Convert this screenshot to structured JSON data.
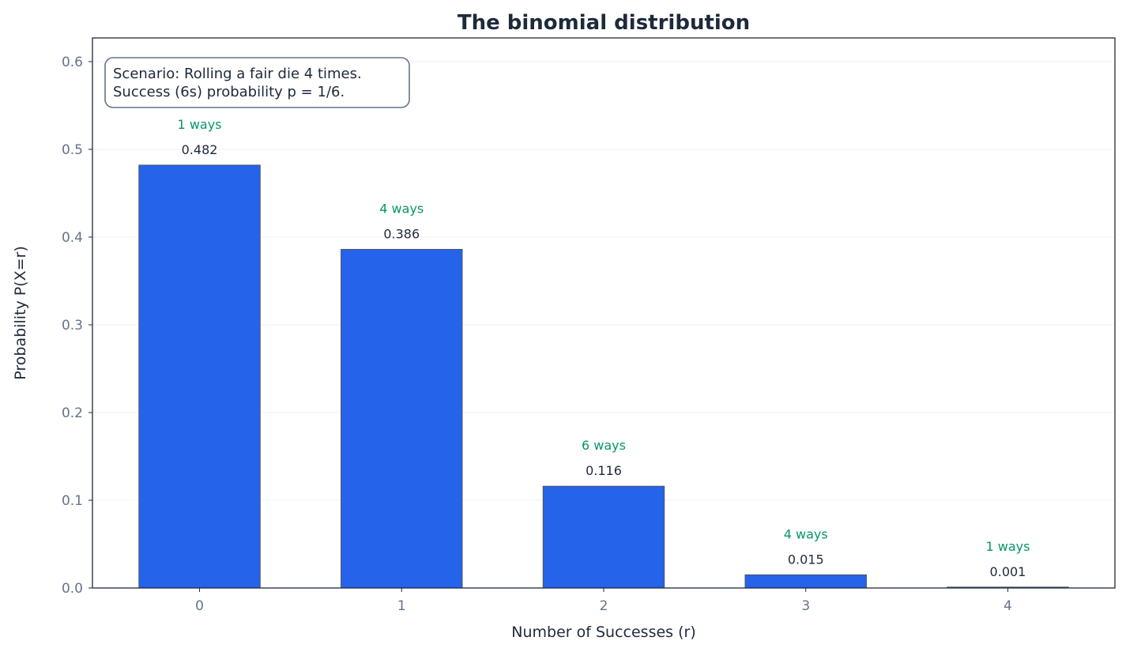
{
  "chart_data": {
    "type": "bar",
    "title": "The binomial distribution",
    "xlabel": "Number of Successes (r)",
    "ylabel": "Probability P(X=r)",
    "categories": [
      "0",
      "1",
      "2",
      "3",
      "4"
    ],
    "values": [
      0.482,
      0.386,
      0.116,
      0.015,
      0.001
    ],
    "value_labels": [
      "0.482",
      "0.386",
      "0.116",
      "0.015",
      "0.001"
    ],
    "ways_labels": [
      "1 ways",
      "4 ways",
      "6 ways",
      "4 ways",
      "1 ways"
    ],
    "ylim": [
      0,
      0.627
    ],
    "xlim": [
      -0.53,
      4.53
    ],
    "yticks": [
      0.0,
      0.1,
      0.2,
      0.3,
      0.4,
      0.5,
      0.6
    ],
    "ytick_labels": [
      "0.0",
      "0.1",
      "0.2",
      "0.3",
      "0.4",
      "0.5",
      "0.6"
    ],
    "grid": "horizontal, faint",
    "annotation": [
      "Scenario: Rolling a fair die 4 times.",
      "Success (6s) probability p = 1/6."
    ],
    "colors": {
      "bar": "#2563eb",
      "bar_edge": "#4b5563",
      "ways_text": "#059669",
      "value_text": "#1e293b",
      "tick_text": "#64748b",
      "annotation_border": "#64748b"
    }
  }
}
